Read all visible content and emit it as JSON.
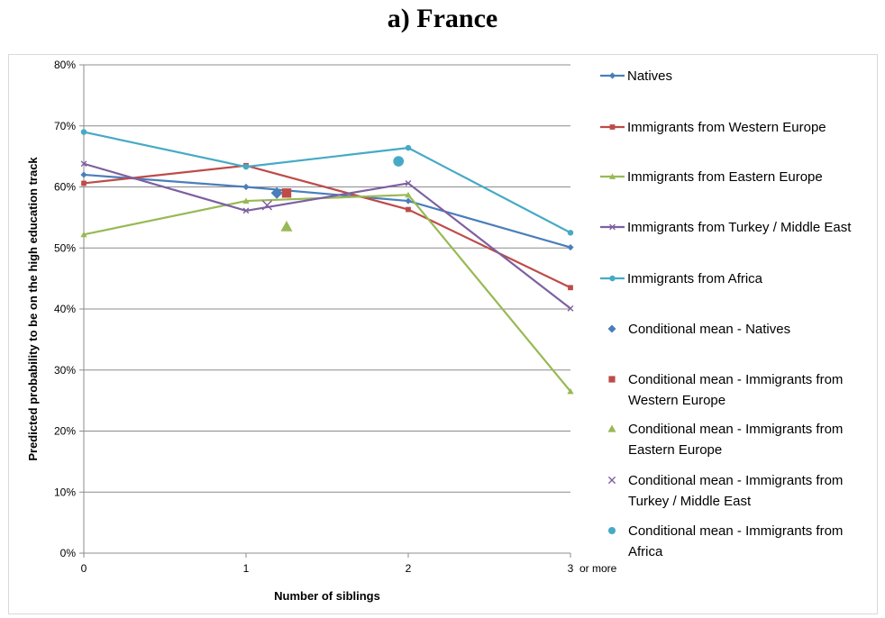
{
  "title": "a)  France",
  "chart_data": {
    "type": "line",
    "xlabel": "Number of siblings",
    "ylabel": "Predicted probability to be on the high education track",
    "x_tick_labels": [
      "0",
      "1",
      "2",
      "3"
    ],
    "x_last_suffix": "or more",
    "y_tick_labels": [
      "0%",
      "10%",
      "20%",
      "30%",
      "40%",
      "50%",
      "60%",
      "70%",
      "80%"
    ],
    "xlim": [
      0,
      3
    ],
    "ylim": [
      0,
      0.8
    ],
    "grid": "horizontal",
    "legend_position": "right",
    "series": [
      {
        "name": "Natives",
        "color": "#4a7ebb",
        "marker": "diamond",
        "x": [
          0,
          1,
          2,
          3
        ],
        "y": [
          0.62,
          0.6,
          0.577,
          0.501
        ]
      },
      {
        "name": "Immigrants from Western Europe",
        "color": "#be4b48",
        "marker": "square",
        "x": [
          0,
          1,
          2,
          3
        ],
        "y": [
          0.606,
          0.635,
          0.563,
          0.435
        ]
      },
      {
        "name": "Immigrants from Eastern Europe",
        "color": "#98b954",
        "marker": "triangle",
        "x": [
          0,
          1,
          2,
          3
        ],
        "y": [
          0.522,
          0.577,
          0.587,
          0.265
        ]
      },
      {
        "name": "Immigrants from Turkey / Middle East",
        "color": "#7d60a0",
        "marker": "x",
        "x": [
          0,
          1,
          2,
          3
        ],
        "y": [
          0.638,
          0.561,
          0.606,
          0.401
        ]
      },
      {
        "name": "Immigrants from Africa",
        "color": "#46aac5",
        "marker": "circle",
        "x": [
          0,
          1,
          2,
          3
        ],
        "y": [
          0.69,
          0.633,
          0.664,
          0.525
        ]
      }
    ],
    "conditional_means": [
      {
        "name_lines": [
          "Conditional mean - Natives"
        ],
        "color": "#4a7ebb",
        "marker": "diamond",
        "x": 1.19,
        "y": 0.59
      },
      {
        "name_lines": [
          "Conditional mean - Immigrants from",
          "Western Europe"
        ],
        "color": "#be4b48",
        "marker": "square",
        "x": 1.25,
        "y": 0.59
      },
      {
        "name_lines": [
          "Conditional mean - Immigrants from",
          "Eastern Europe"
        ],
        "color": "#98b954",
        "marker": "triangle",
        "x": 1.25,
        "y": 0.535
      },
      {
        "name_lines": [
          "Conditional mean - Immigrants from",
          "Turkey / Middle East"
        ],
        "color": "#7d60a0",
        "marker": "x",
        "x": 1.13,
        "y": 0.57
      },
      {
        "name_lines": [
          "Conditional mean - Immigrants from",
          "Africa"
        ],
        "color": "#46aac5",
        "marker": "circle",
        "x": 1.94,
        "y": 0.642
      }
    ]
  }
}
